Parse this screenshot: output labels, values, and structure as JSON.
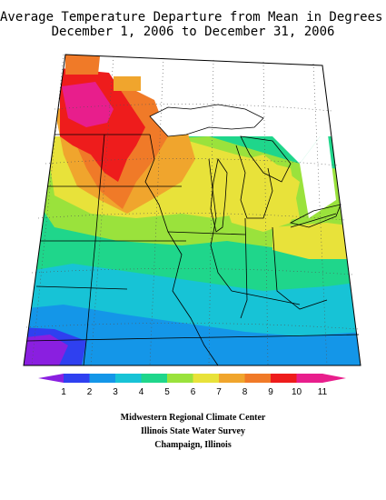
{
  "title": {
    "line1": "Average Temperature Departure from Mean in Degrees F",
    "line2": "December 1, 2006 to December 31, 2006"
  },
  "legend": {
    "labels": [
      "1",
      "2",
      "3",
      "4",
      "5",
      "6",
      "7",
      "8",
      "9",
      "10",
      "11"
    ],
    "colors": [
      "#8a1fe0",
      "#2f40f0",
      "#1496e8",
      "#17c3d6",
      "#1fd68b",
      "#9ae23c",
      "#e8e23a",
      "#f0a52d",
      "#f07a28",
      "#ee1c1c",
      "#e81e8c"
    ]
  },
  "credits": {
    "line1": "Midwestern Regional Climate Center",
    "line2": "Illinois State Water Survey",
    "line3": "Champaign, Illinois"
  }
}
